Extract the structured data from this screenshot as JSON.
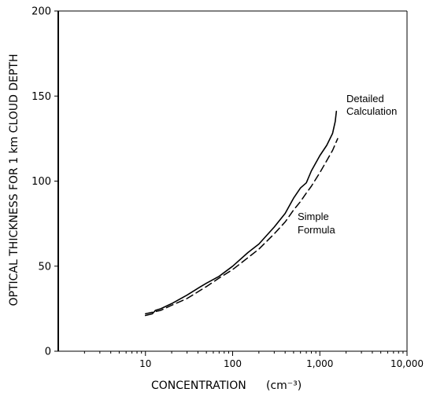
{
  "chart_data": {
    "type": "line",
    "xscale": "log",
    "xlim": [
      1,
      10000
    ],
    "ylim": [
      0,
      200
    ],
    "xlabel": "CONCENTRATION",
    "xlabel_unit": "(cm⁻³)",
    "ylabel": "OPTICAL THICKNESS FOR 1 km CLOUD DEPTH",
    "xticks": [
      10,
      100,
      1000,
      10000
    ],
    "xtick_labels": [
      "10",
      "100",
      "1,000",
      "10,000"
    ],
    "yticks": [
      0,
      50,
      100,
      150,
      200
    ],
    "ytick_labels": [
      "0",
      "50",
      "100",
      "150",
      "200"
    ],
    "grid": false,
    "series": [
      {
        "name": "Detailed Calculation",
        "label_lines": [
          "Detailed",
          "Calculation"
        ],
        "style": "solid",
        "x": [
          10,
          12,
          13,
          15,
          20,
          30,
          40,
          50,
          70,
          100,
          150,
          200,
          300,
          400,
          500,
          600,
          700,
          800,
          1000,
          1200,
          1400,
          1500,
          1550
        ],
        "y": [
          21,
          22,
          24,
          25,
          28,
          33,
          37,
          40,
          44,
          50,
          58,
          63,
          73,
          81,
          90,
          96,
          99,
          106,
          115,
          121,
          128,
          135,
          141
        ]
      },
      {
        "name": "Simple Formula",
        "label_lines": [
          "Simple",
          "Formula"
        ],
        "style": "dashed",
        "x": [
          10,
          15,
          20,
          30,
          50,
          70,
          100,
          150,
          200,
          300,
          400,
          500,
          600,
          700,
          800,
          1000,
          1200,
          1400,
          1600
        ],
        "y": [
          22,
          24,
          27,
          31,
          38,
          43,
          48,
          55,
          60,
          69,
          76,
          83,
          88,
          93,
          97,
          105,
          112,
          118,
          125
        ]
      }
    ]
  }
}
